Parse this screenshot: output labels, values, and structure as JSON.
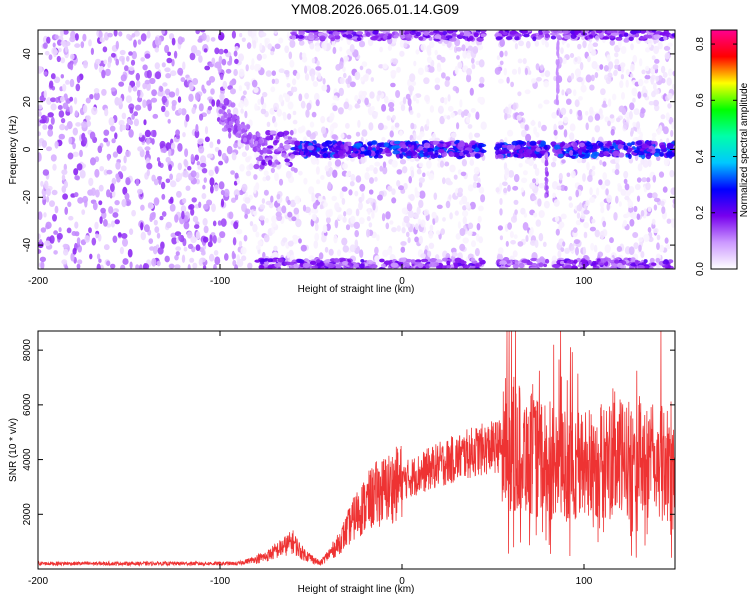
{
  "title": "YM08.2026.065.01.14.G09",
  "chart_data": [
    {
      "type": "heatmap",
      "title": "YM08.2026.065.01.14.G09",
      "xlabel": "Height of straight line (km)",
      "ylabel": "Frequency (Hz)",
      "xlim": [
        -200,
        150
      ],
      "ylim": [
        -50,
        50
      ],
      "x_ticks": [
        "-200",
        "-100",
        "0",
        "100"
      ],
      "y_ticks": [
        "-40",
        "-20",
        "0",
        "20",
        "40"
      ],
      "colorbar": {
        "label": "Normalized spectral amplitude",
        "range": [
          0.0,
          0.85
        ],
        "ticks": [
          "0.0",
          "0.2",
          "0.4",
          "0.6",
          "0.8"
        ],
        "colormap": [
          "#ffffff",
          "#cc99ff",
          "#7700ee",
          "#0000ff",
          "#00c8ff",
          "#00ffaa",
          "#00ff00",
          "#ffff00",
          "#ff0000",
          "#ff0090"
        ]
      },
      "features": [
        {
          "kind": "carrier_line",
          "frequency_hz": 0,
          "x_range": [
            -80,
            150
          ],
          "peak_x_km": 47,
          "peak_amplitude": 0.7
        },
        {
          "kind": "edge_band",
          "frequency_hz": -50,
          "x_range": [
            -80,
            150
          ]
        },
        {
          "kind": "edge_band",
          "frequency_hz": 50,
          "x_range": [
            -60,
            150
          ]
        },
        {
          "kind": "data_gap",
          "x_range": [
            45,
            52
          ]
        },
        {
          "kind": "data_gap",
          "x_range": [
            80,
            83
          ]
        },
        {
          "kind": "dip",
          "x_km": 80,
          "frequency_range_hz": [
            -20,
            0
          ]
        }
      ]
    },
    {
      "type": "line",
      "xlabel": "Height of straight line (km)",
      "ylabel": "SNR (10 * v/v)",
      "xlim": [
        -200,
        150
      ],
      "ylim": [
        0,
        8700
      ],
      "x_ticks": [
        "-200",
        "-100",
        "0",
        "100"
      ],
      "y_ticks": [
        "2000",
        "4000",
        "6000",
        "8000"
      ],
      "color": "#ee3333",
      "envelope": [
        {
          "x": -200,
          "y": 200
        },
        {
          "x": -150,
          "y": 200
        },
        {
          "x": -90,
          "y": 200
        },
        {
          "x": -75,
          "y": 450
        },
        {
          "x": -60,
          "y": 1000
        },
        {
          "x": -55,
          "y": 600
        },
        {
          "x": -45,
          "y": 200
        },
        {
          "x": -35,
          "y": 900
        },
        {
          "x": -25,
          "y": 2000
        },
        {
          "x": -15,
          "y": 2700
        },
        {
          "x": 0,
          "y": 3200
        },
        {
          "x": 20,
          "y": 3800
        },
        {
          "x": 40,
          "y": 4300
        },
        {
          "x": 60,
          "y": 4600
        },
        {
          "x": 80,
          "y": 3800
        },
        {
          "x": 100,
          "y": 3800
        },
        {
          "x": 120,
          "y": 4000
        },
        {
          "x": 150,
          "y": 3800
        }
      ]
    }
  ]
}
